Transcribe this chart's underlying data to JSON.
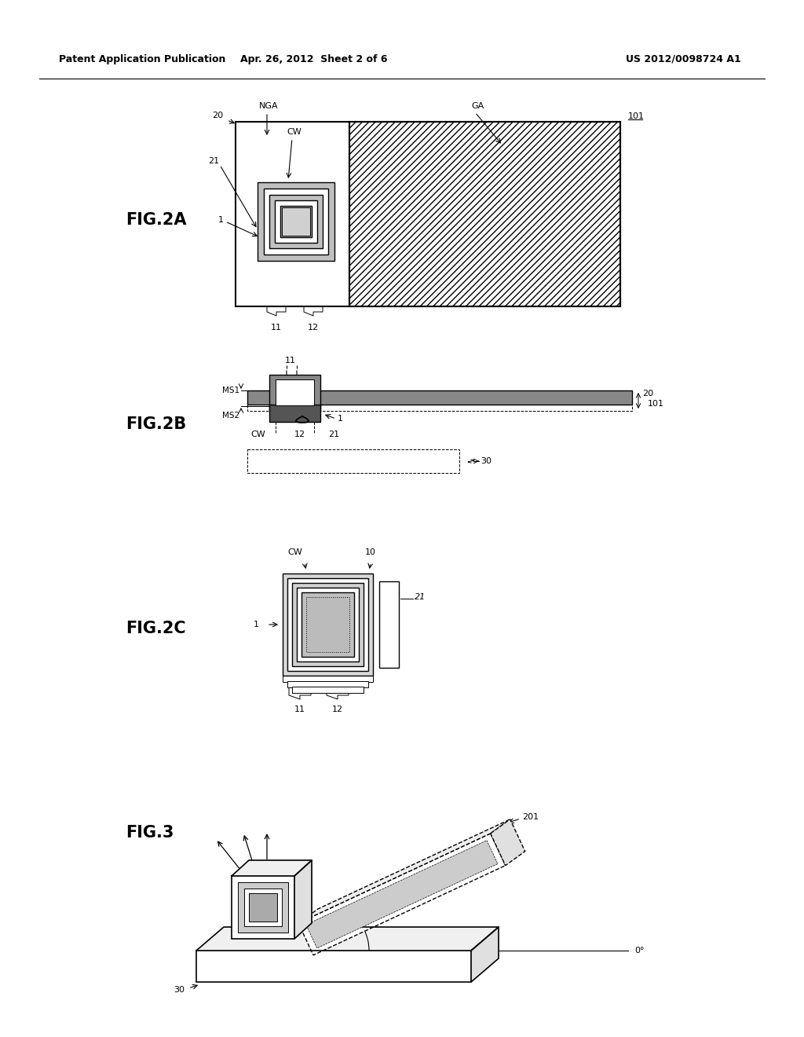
{
  "bg_color": "#ffffff",
  "line_color": "#000000",
  "header": {
    "left": "Patent Application Publication",
    "center": "Apr. 26, 2012  Sheet 2 of 6",
    "right": "US 2012/0098724 A1"
  },
  "fig2a_label": "FIG.2A",
  "fig2b_label": "FIG.2B",
  "fig2c_label": "FIG.2C",
  "fig3_label": "FIG.3",
  "gray_light": "#c8c8c8",
  "gray_mid": "#aaaaaa",
  "gray_dark": "#888888"
}
